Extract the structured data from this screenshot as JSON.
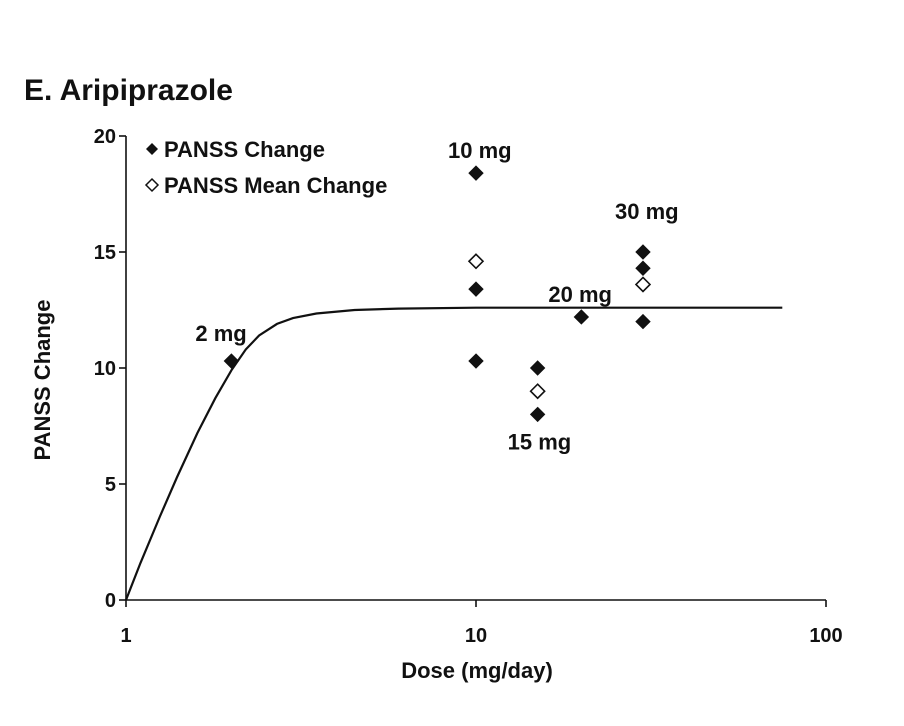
{
  "chart_data": {
    "type": "scatter",
    "title": "E. Aripiprazole",
    "xlabel": "Dose (mg/day)",
    "ylabel": "PANSS Change",
    "x_scale": "log",
    "xlim": [
      1,
      100
    ],
    "ylim": [
      0,
      20
    ],
    "x_ticks": [
      1,
      10,
      100
    ],
    "x_tick_labels": [
      "1",
      "10",
      "100"
    ],
    "y_ticks": [
      0,
      5,
      10,
      15,
      20
    ],
    "y_tick_labels": [
      "0",
      "5",
      "10",
      "15",
      "20"
    ],
    "grid": false,
    "legend_position": "top-left",
    "series": [
      {
        "name": "PANSS Change",
        "marker": "filled-diamond",
        "color": "#111111",
        "points": [
          {
            "x": 2,
            "y": 10.3
          },
          {
            "x": 10,
            "y": 18.4
          },
          {
            "x": 10,
            "y": 13.4
          },
          {
            "x": 10,
            "y": 10.3
          },
          {
            "x": 15,
            "y": 10.0
          },
          {
            "x": 15,
            "y": 8.0
          },
          {
            "x": 20,
            "y": 12.2
          },
          {
            "x": 30,
            "y": 15.0
          },
          {
            "x": 30,
            "y": 14.3
          },
          {
            "x": 30,
            "y": 12.0
          }
        ]
      },
      {
        "name": "PANSS Mean Change",
        "marker": "open-diamond",
        "color": "#111111",
        "points": [
          {
            "x": 10,
            "y": 14.6
          },
          {
            "x": 15,
            "y": 9.0
          },
          {
            "x": 30,
            "y": 13.6
          }
        ]
      },
      {
        "marker": "line",
        "color": "#111111",
        "points": [
          {
            "x": 1.0,
            "y": 0.0
          },
          {
            "x": 1.1,
            "y": 1.6
          },
          {
            "x": 1.25,
            "y": 3.6
          },
          {
            "x": 1.4,
            "y": 5.3
          },
          {
            "x": 1.6,
            "y": 7.2
          },
          {
            "x": 1.8,
            "y": 8.7
          },
          {
            "x": 2.0,
            "y": 9.9
          },
          {
            "x": 2.2,
            "y": 10.8
          },
          {
            "x": 2.4,
            "y": 11.4
          },
          {
            "x": 2.7,
            "y": 11.9
          },
          {
            "x": 3.0,
            "y": 12.15
          },
          {
            "x": 3.5,
            "y": 12.35
          },
          {
            "x": 4.5,
            "y": 12.5
          },
          {
            "x": 6,
            "y": 12.56
          },
          {
            "x": 10,
            "y": 12.6
          },
          {
            "x": 20,
            "y": 12.6
          },
          {
            "x": 40,
            "y": 12.6
          },
          {
            "x": 75,
            "y": 12.6
          }
        ]
      }
    ],
    "annotations": [
      {
        "text": "2 mg",
        "x": 2,
        "y": 10.3
      },
      {
        "text": "10 mg",
        "x": 10,
        "y": 18.4
      },
      {
        "text": "15 mg",
        "x": 15,
        "y": 8.0
      },
      {
        "text": "20 mg",
        "x": 20,
        "y": 12.2
      },
      {
        "text": "30 mg",
        "x": 30,
        "y": 15.0
      }
    ]
  }
}
